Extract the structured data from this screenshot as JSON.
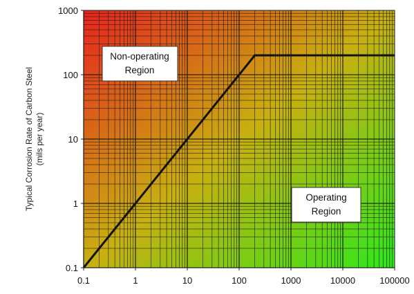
{
  "chart_data": {
    "type": "line",
    "xscale": "log",
    "yscale": "log",
    "xlim": [
      0.1,
      100000
    ],
    "ylim": [
      0.1,
      1000
    ],
    "x_ticks": [
      "0.1",
      "1",
      "10",
      "100",
      "1000",
      "10000",
      "100000"
    ],
    "y_ticks": [
      "0.1",
      "1",
      "10",
      "100",
      "1000"
    ],
    "ylabel_line1": "Typical Corrosion Rate of Carbon Steel",
    "ylabel_line2": "(mils per year)",
    "xlabel": "",
    "grid": true,
    "background_gradient": [
      "#e8221e",
      "#2ee81a"
    ],
    "series": [
      {
        "x": [
          0.1,
          200,
          100000
        ],
        "y": [
          0.1,
          200,
          200
        ],
        "color": "#111111"
      }
    ],
    "annotations": [
      {
        "lines": [
          "Non-operating",
          "Region"
        ]
      },
      {
        "lines": [
          "Operating",
          "Region"
        ]
      }
    ]
  }
}
